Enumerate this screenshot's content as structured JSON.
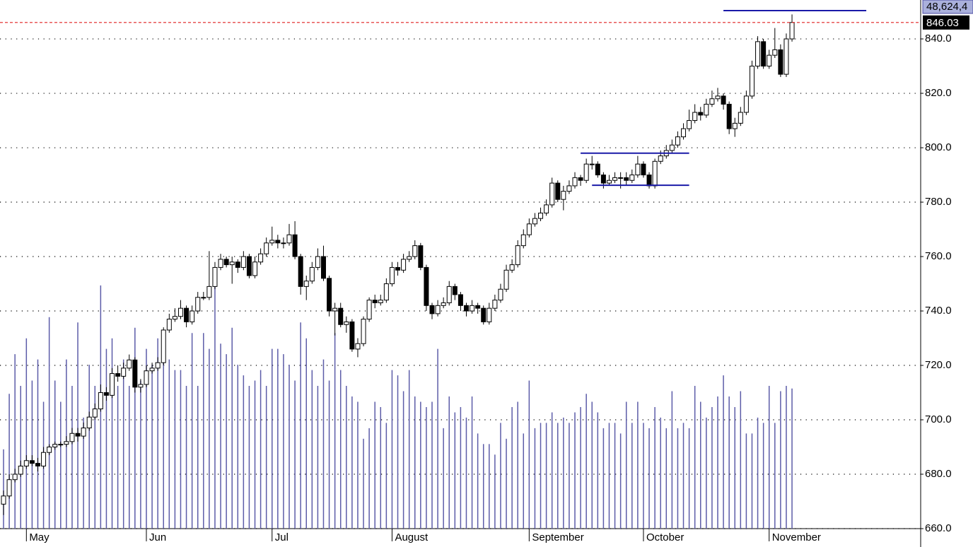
{
  "chart_data": {
    "type": "candlestick",
    "volume_label": "48,624,4",
    "last_price": 846.03,
    "ylim": [
      660,
      854.3
    ],
    "yticks": [
      {
        "value": 660,
        "label": "660.0"
      },
      {
        "value": 680,
        "label": "680.0"
      },
      {
        "value": 700,
        "label": "700.0"
      },
      {
        "value": 720,
        "label": "720.0"
      },
      {
        "value": 740,
        "label": "740.0"
      },
      {
        "value": 760,
        "label": "760.0"
      },
      {
        "value": 780,
        "label": "780.0"
      },
      {
        "value": 800,
        "label": "800.0"
      },
      {
        "value": 820,
        "label": "820.0"
      },
      {
        "value": 840,
        "label": "840.0"
      }
    ],
    "grid": true,
    "volume_lim": [
      0,
      100
    ],
    "colors": {
      "up": "#ffffff",
      "down": "#000000",
      "volume": "#5c5ca8",
      "levels": "#1a1aa8",
      "last_price": "#e02020"
    },
    "levels": [
      {
        "value": 798,
        "from": 101,
        "to": 120
      },
      {
        "value": 786.2,
        "from": 103,
        "to": 120
      },
      {
        "value": 850.4,
        "from": 126,
        "to": 151
      }
    ],
    "categories": [
      null,
      null,
      null,
      null,
      "May",
      null,
      null,
      null,
      null,
      null,
      null,
      null,
      null,
      null,
      null,
      null,
      null,
      null,
      null,
      null,
      null,
      null,
      null,
      null,
      null,
      "Jun",
      null,
      null,
      null,
      null,
      null,
      null,
      null,
      null,
      null,
      null,
      null,
      null,
      null,
      null,
      null,
      null,
      null,
      null,
      null,
      null,
      null,
      "Jul",
      null,
      null,
      null,
      null,
      null,
      null,
      null,
      null,
      null,
      null,
      null,
      null,
      null,
      null,
      null,
      null,
      null,
      null,
      null,
      null,
      "August",
      null,
      null,
      null,
      null,
      null,
      null,
      null,
      null,
      null,
      null,
      null,
      null,
      null,
      null,
      null,
      null,
      null,
      null,
      null,
      null,
      null,
      null,
      null,
      "September",
      null,
      null,
      null,
      null,
      null,
      null,
      null,
      null,
      null,
      null,
      null,
      null,
      null,
      null,
      null,
      null,
      null,
      null,
      null,
      "October",
      null,
      null,
      null,
      null,
      null,
      null,
      null,
      null,
      null,
      null,
      null,
      null,
      null,
      null,
      null,
      null,
      null,
      null,
      null,
      null,
      null,
      "November",
      null,
      null,
      null,
      null
    ],
    "open": [
      669,
      672,
      678,
      680,
      683,
      685,
      684,
      683,
      688,
      690,
      691,
      691,
      692,
      695,
      694,
      697,
      701,
      704,
      710,
      709,
      717,
      716,
      719,
      722,
      712,
      713,
      718,
      719,
      721,
      733,
      737,
      738,
      741,
      736,
      740,
      745,
      745,
      749,
      756,
      759,
      757,
      758,
      756,
      760,
      753,
      758,
      761,
      765,
      766,
      765,
      765,
      768,
      760,
      749,
      751,
      756,
      760,
      752,
      740,
      741,
      735,
      736,
      726,
      728,
      737,
      744,
      743,
      744,
      750,
      756,
      755,
      759,
      760,
      764,
      756,
      742,
      739,
      742,
      743,
      749,
      746,
      742,
      740,
      742,
      741,
      736,
      741,
      744,
      748,
      755,
      757,
      764,
      768,
      772,
      774,
      776,
      779,
      787,
      781,
      784,
      786,
      789,
      788,
      794,
      794,
      790,
      787,
      788,
      789,
      789,
      788,
      790,
      794,
      790,
      786,
      795,
      797,
      799,
      801,
      804,
      807,
      810,
      813,
      812,
      816,
      818,
      819,
      816,
      807,
      809,
      813,
      819,
      830,
      839,
      830,
      834,
      836,
      827,
      840
    ],
    "high": [
      674,
      680,
      682,
      685,
      687,
      687,
      686,
      690,
      691,
      692,
      692,
      694,
      697,
      697,
      699,
      703,
      706,
      713,
      712,
      719,
      720,
      721,
      724,
      723,
      715,
      720,
      721,
      723,
      734,
      739,
      741,
      744,
      742,
      742,
      747,
      747,
      762,
      758,
      761,
      760,
      760,
      759,
      762,
      761,
      760,
      763,
      767,
      771,
      768,
      767,
      772,
      773,
      761,
      753,
      758,
      763,
      764,
      753,
      743,
      743,
      738,
      737,
      730,
      738,
      745,
      746,
      746,
      752,
      758,
      758,
      761,
      762,
      766,
      765,
      757,
      743,
      744,
      745,
      751,
      750,
      747,
      743,
      744,
      743,
      742,
      743,
      746,
      750,
      757,
      759,
      766,
      770,
      774,
      776,
      778,
      781,
      789,
      788,
      786,
      788,
      791,
      790,
      796,
      797,
      795,
      791,
      790,
      791,
      791,
      791,
      792,
      797,
      795,
      791,
      796,
      799,
      801,
      803,
      806,
      809,
      814,
      816,
      815,
      818,
      821,
      822,
      820,
      817,
      811,
      815,
      821,
      832,
      841,
      840,
      836,
      844,
      838,
      842,
      849
    ],
    "low": [
      665,
      671,
      677,
      679,
      682,
      683,
      681,
      682,
      687,
      689,
      690,
      690,
      691,
      692,
      693,
      696,
      700,
      703,
      707,
      708,
      714,
      715,
      718,
      710,
      710,
      712,
      717,
      718,
      720,
      732,
      736,
      737,
      734,
      735,
      739,
      744,
      744,
      748,
      755,
      756,
      750,
      754,
      755,
      752,
      752,
      757,
      760,
      764,
      763,
      763,
      764,
      759,
      746,
      744,
      750,
      755,
      751,
      738,
      731,
      734,
      732,
      725,
      723,
      727,
      736,
      741,
      742,
      743,
      749,
      753,
      754,
      758,
      759,
      755,
      740,
      737,
      738,
      741,
      742,
      744,
      740,
      738,
      739,
      739,
      735,
      735,
      740,
      743,
      747,
      754,
      756,
      763,
      767,
      771,
      773,
      775,
      778,
      780,
      777,
      783,
      785,
      786,
      787,
      792,
      789,
      785,
      786,
      787,
      785,
      786,
      787,
      789,
      789,
      785,
      785,
      794,
      796,
      798,
      800,
      803,
      806,
      809,
      810,
      811,
      815,
      817,
      814,
      805,
      804,
      808,
      812,
      818,
      829,
      829,
      829,
      833,
      826,
      826,
      839
    ],
    "close": [
      672,
      678,
      680,
      683,
      685,
      684,
      683,
      688,
      690,
      691,
      691,
      692,
      695,
      694,
      697,
      701,
      704,
      710,
      709,
      717,
      716,
      719,
      722,
      712,
      713,
      718,
      719,
      721,
      733,
      737,
      738,
      741,
      736,
      740,
      745,
      745,
      749,
      756,
      759,
      757,
      758,
      756,
      760,
      753,
      758,
      761,
      765,
      766,
      765,
      765,
      768,
      760,
      749,
      751,
      756,
      760,
      752,
      740,
      741,
      735,
      736,
      726,
      728,
      737,
      744,
      743,
      744,
      750,
      756,
      755,
      759,
      760,
      764,
      756,
      742,
      739,
      742,
      743,
      749,
      746,
      742,
      740,
      742,
      741,
      736,
      741,
      744,
      748,
      755,
      757,
      764,
      768,
      772,
      774,
      776,
      779,
      787,
      781,
      784,
      786,
      789,
      788,
      794,
      794,
      790,
      787,
      788,
      789,
      789,
      788,
      790,
      794,
      790,
      786,
      795,
      797,
      799,
      801,
      804,
      807,
      810,
      813,
      812,
      816,
      818,
      819,
      816,
      807,
      809,
      813,
      819,
      830,
      839,
      830,
      834,
      836,
      827,
      840,
      846.03
    ],
    "volume": [
      15,
      25.5,
      33,
      27,
      36,
      28,
      32,
      24,
      40,
      28,
      24,
      32,
      27,
      39,
      21,
      31,
      27,
      46,
      34,
      36,
      27,
      32,
      27,
      38,
      28,
      34,
      31,
      36,
      34,
      32,
      30,
      30,
      27,
      37,
      27,
      37,
      34,
      48.5,
      35,
      33,
      38,
      31,
      29,
      27,
      28,
      30,
      27,
      34,
      34,
      33,
      31,
      28,
      39,
      36,
      30,
      27,
      32,
      28,
      37,
      30,
      27,
      25,
      24,
      17,
      19,
      24,
      23,
      20,
      30,
      29,
      26,
      30,
      25,
      24,
      23,
      24,
      34,
      19,
      25,
      22,
      23,
      21,
      25,
      18,
      16,
      16,
      14,
      20,
      17,
      23,
      24,
      18,
      28,
      19,
      20,
      20,
      22,
      20,
      21,
      20,
      22,
      23,
      25.5,
      24,
      22,
      19,
      20,
      20,
      18,
      24,
      20,
      24,
      20,
      19,
      23,
      21,
      19,
      26,
      19,
      20,
      19,
      27,
      24,
      21,
      23,
      25,
      29,
      25,
      23,
      26,
      18,
      18,
      21,
      20,
      27,
      20,
      26,
      27,
      26.5
    ]
  }
}
